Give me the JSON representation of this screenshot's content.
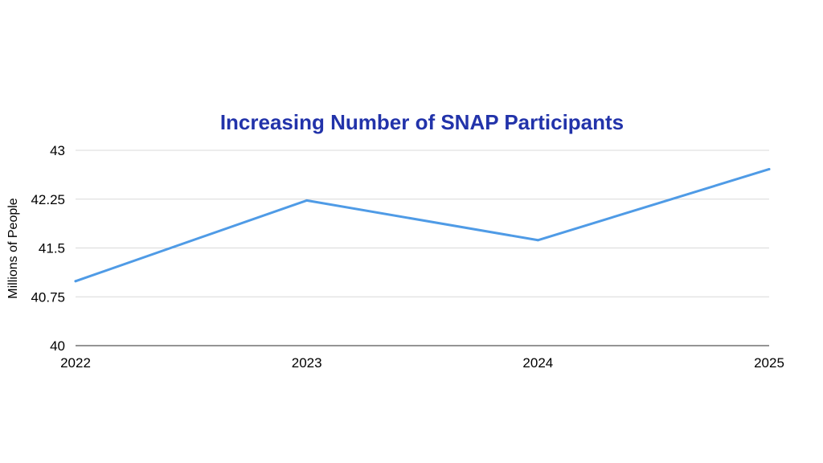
{
  "chart_data": {
    "type": "line",
    "title": "Increasing Number of SNAP Participants",
    "xlabel": "",
    "ylabel": "Millions of People",
    "categories": [
      "2022",
      "2023",
      "2024",
      "2025"
    ],
    "series": [
      {
        "values": [
          40.99,
          42.23,
          41.62,
          42.71
        ]
      }
    ],
    "yticks": [
      "40",
      "40.75",
      "41.5",
      "42.25",
      "43"
    ],
    "ylim": [
      40,
      43
    ],
    "grid": true,
    "legend": "none"
  },
  "colors": {
    "title": "#2233aa",
    "line": "#4f9be6",
    "grid": "#d9d9d9",
    "axis": "#555555"
  }
}
